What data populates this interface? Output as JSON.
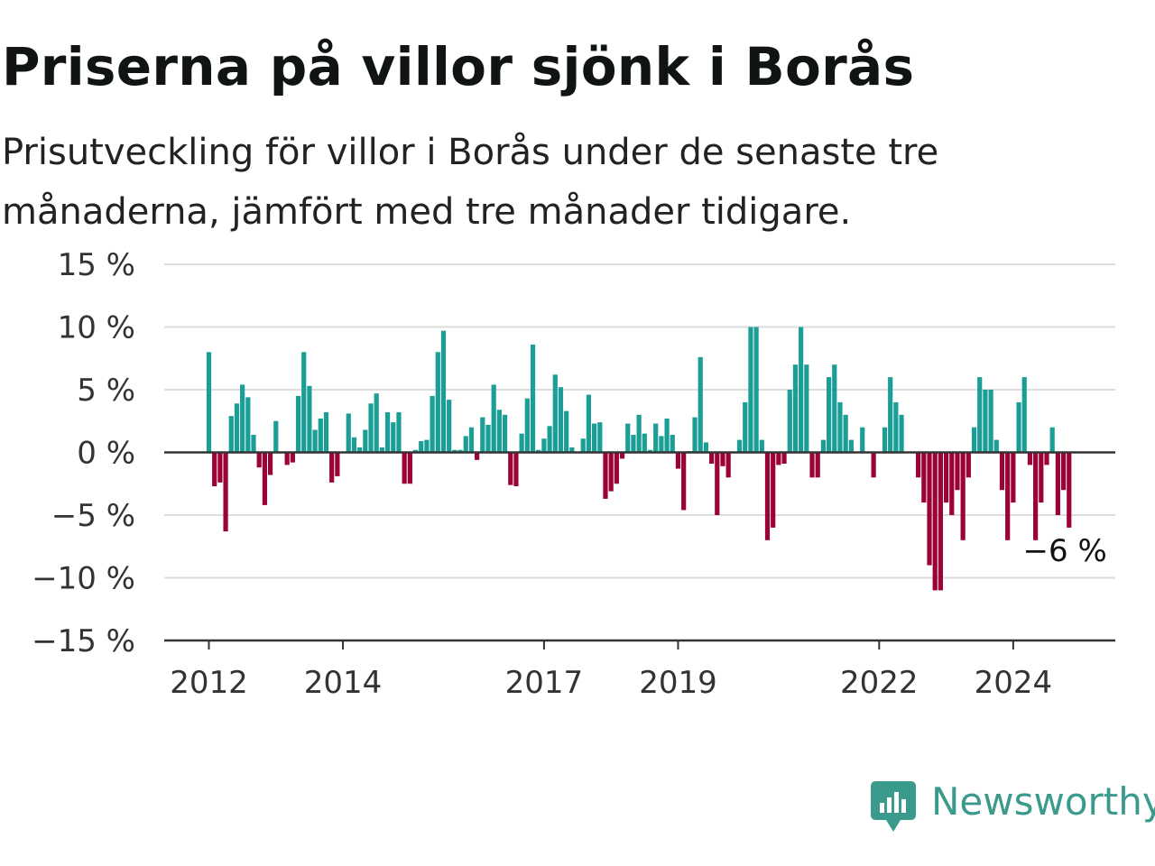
{
  "header": {
    "title": "Priserna på villor sjönk i Borås",
    "subtitle": "Prisutveckling för villor i Borås under de senaste tre månaderna, jämfört med tre månader tidigare."
  },
  "chart_data": {
    "type": "bar",
    "title": "Priserna på villor sjönk i Borås",
    "subtitle": "Prisutveckling för villor i Borås under de senaste tre månaderna, jämfört med tre månader tidigare.",
    "xlabel": "",
    "ylabel": "",
    "ylim": [
      -15,
      15
    ],
    "yticks": [
      15,
      10,
      5,
      0,
      -5,
      -10,
      -15
    ],
    "ytick_labels": [
      "15 %",
      "10 %",
      "5 %",
      "0 %",
      "−5 %",
      "−10 %",
      "−15 %"
    ],
    "xticks": [
      {
        "label": "2012",
        "month_index": 0
      },
      {
        "label": "2014",
        "month_index": 24
      },
      {
        "label": "2017",
        "month_index": 60
      },
      {
        "label": "2019",
        "month_index": 84
      },
      {
        "label": "2022",
        "month_index": 120
      },
      {
        "label": "2024",
        "month_index": 144
      }
    ],
    "grid": true,
    "series": [
      {
        "start": "2012-01",
        "frequency": "monthly",
        "values": [
          8,
          -2.7,
          -2.4,
          -6.3,
          2.9,
          3.9,
          5.4,
          4.4,
          1.4,
          -1.2,
          -4.2,
          -1.8,
          2.5,
          0,
          -1,
          -0.8,
          4.5,
          8,
          5.3,
          1.8,
          2.7,
          3.2,
          -2.4,
          -1.9,
          0,
          3.1,
          1.2,
          0.4,
          1.8,
          3.9,
          4.7,
          0.4,
          3.2,
          2.4,
          3.2,
          -2.5,
          -2.5,
          0.2,
          0.9,
          1,
          4.5,
          8,
          9.7,
          4.2,
          0.2,
          0.2,
          1.3,
          2,
          -0.6,
          2.8,
          2.2,
          5.4,
          3.4,
          3,
          -2.6,
          -2.7,
          1.5,
          4.3,
          8.6,
          0.2,
          1.1,
          2.1,
          6.2,
          5.2,
          3.3,
          0.4,
          0,
          1.1,
          4.6,
          2.3,
          2.4,
          -3.7,
          -3.1,
          -2.5,
          -0.5,
          2.3,
          1.4,
          3,
          1.5,
          0.2,
          2.3,
          1.3,
          2.7,
          1.4,
          -1.3,
          -4.6,
          0.1,
          2.8,
          7.6,
          0.8,
          -0.9,
          -5,
          -1.1,
          -2,
          0,
          1,
          4,
          10,
          10,
          1,
          -7,
          -6,
          -1,
          -0.9,
          5,
          7,
          10,
          7,
          -2,
          -2,
          1,
          6,
          7,
          4,
          3,
          1,
          0,
          2,
          0,
          -2,
          0,
          2,
          6,
          4,
          3,
          0,
          0,
          -2,
          -4,
          -9,
          -11,
          -11,
          -4,
          -5,
          -3,
          -7,
          -2,
          2,
          6,
          5,
          5,
          1,
          -3,
          -7,
          -4,
          4,
          6,
          -1,
          -7,
          -4,
          -1,
          2,
          -5,
          -3,
          -6
        ]
      }
    ],
    "colors": {
      "positive": "#1a9e95",
      "negative": "#9c0237"
    },
    "annotation": {
      "text": "−6 %",
      "value": -6
    }
  },
  "branding": {
    "name": "Newsworthy",
    "color": "#3a9a8c",
    "icon": "newsworthy-logo-icon"
  }
}
